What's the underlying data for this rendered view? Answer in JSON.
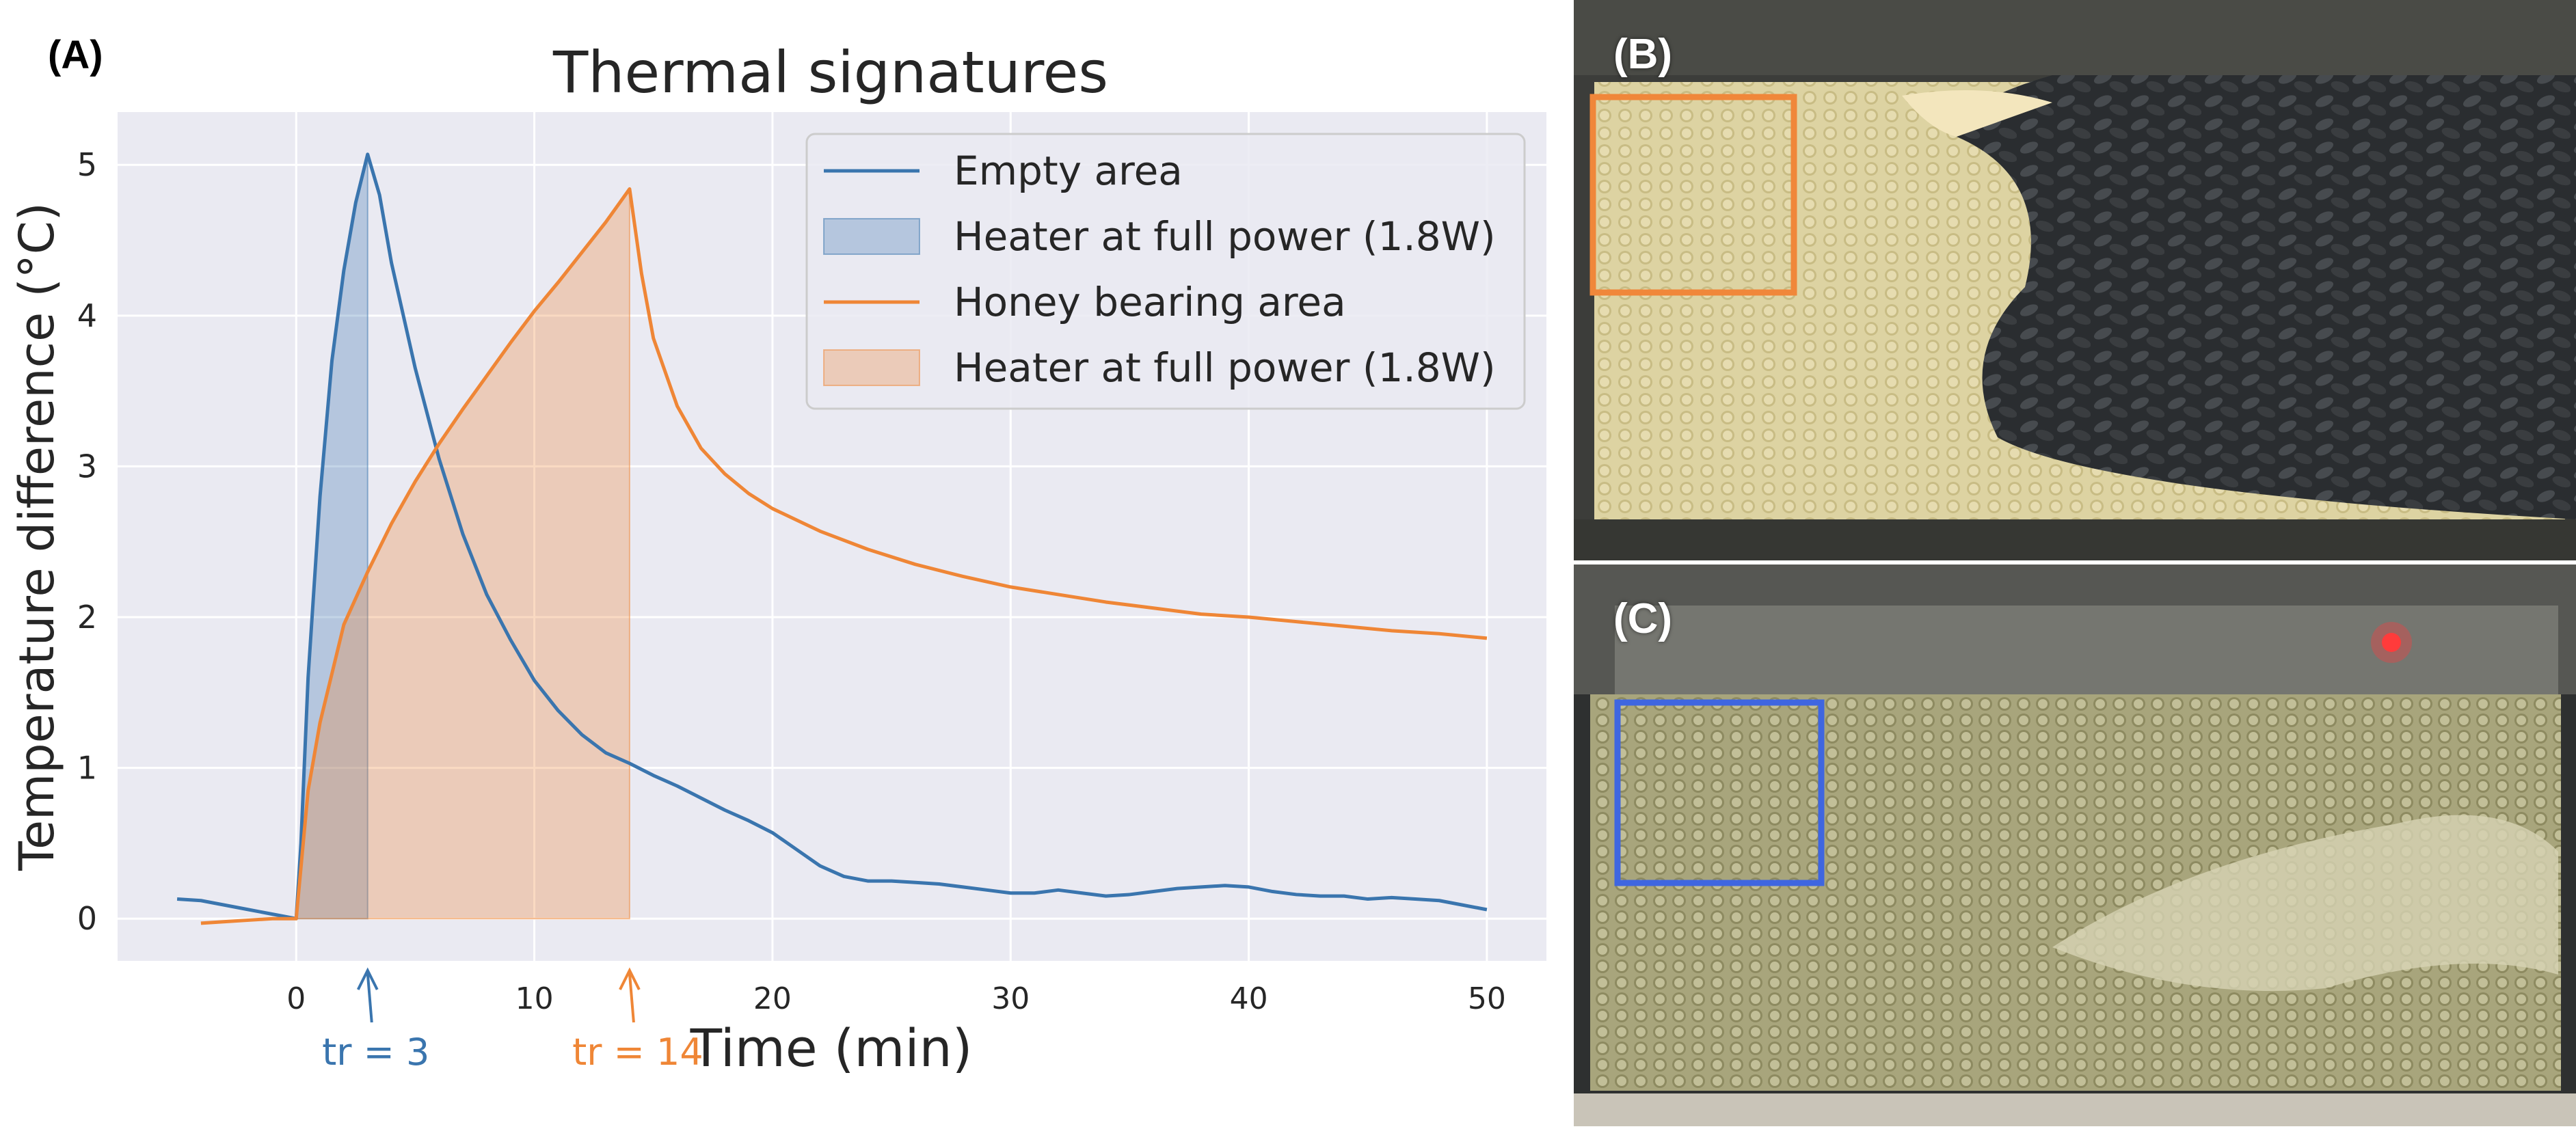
{
  "panel_a_label": "(A)",
  "chart_data": {
    "type": "line",
    "title": "Thermal signatures",
    "xlabel": "Time (min)",
    "ylabel": "Temperature difference (°C)",
    "xlim": [
      -7.5,
      52.5
    ],
    "ylim": [
      -0.28,
      5.35
    ],
    "xticks": [
      0,
      10,
      20,
      30,
      40,
      50
    ],
    "yticks": [
      0,
      1,
      2,
      3,
      4,
      5
    ],
    "grid": true,
    "legend_position": "top-right",
    "series": [
      {
        "name": "Empty area",
        "color": "#3a75ae",
        "x": [
          -5,
          -4,
          -3,
          -2,
          -1,
          0,
          0.2,
          0.5,
          1,
          1.5,
          2,
          2.5,
          3,
          3.5,
          4,
          5,
          6,
          7,
          8,
          9,
          10,
          11,
          12,
          13,
          14,
          15,
          16,
          17,
          18,
          19,
          20,
          21,
          22,
          23,
          24,
          25,
          26,
          27,
          28,
          29,
          30,
          31,
          32,
          33,
          34,
          35,
          36,
          37,
          38,
          39,
          40,
          41,
          42,
          43,
          44,
          45,
          46,
          47,
          48,
          49,
          50
        ],
        "values": [
          0.13,
          0.12,
          0.09,
          0.06,
          0.03,
          0.0,
          0.5,
          1.6,
          2.8,
          3.7,
          4.3,
          4.75,
          5.07,
          4.8,
          4.35,
          3.65,
          3.05,
          2.55,
          2.15,
          1.85,
          1.58,
          1.38,
          1.22,
          1.1,
          1.03,
          0.95,
          0.88,
          0.8,
          0.72,
          0.65,
          0.57,
          0.46,
          0.35,
          0.28,
          0.25,
          0.25,
          0.24,
          0.23,
          0.21,
          0.19,
          0.17,
          0.17,
          0.19,
          0.17,
          0.15,
          0.16,
          0.18,
          0.2,
          0.21,
          0.22,
          0.21,
          0.18,
          0.16,
          0.15,
          0.15,
          0.13,
          0.14,
          0.13,
          0.12,
          0.09,
          0.06
        ]
      },
      {
        "name": "Honey bearing area",
        "color": "#ef8636",
        "x": [
          -4,
          -3,
          -2,
          -1,
          0,
          0.5,
          1,
          2,
          3,
          4,
          5,
          6,
          7,
          8,
          9,
          10,
          11,
          12,
          13,
          14,
          14.5,
          15,
          16,
          17,
          18,
          19,
          20,
          22,
          24,
          26,
          28,
          30,
          32,
          34,
          36,
          38,
          40,
          42,
          44,
          46,
          48,
          50
        ],
        "values": [
          -0.03,
          -0.02,
          -0.01,
          0.0,
          0.0,
          0.85,
          1.3,
          1.95,
          2.3,
          2.62,
          2.9,
          3.15,
          3.38,
          3.6,
          3.82,
          4.03,
          4.22,
          4.42,
          4.62,
          4.84,
          4.28,
          3.85,
          3.4,
          3.12,
          2.95,
          2.82,
          2.72,
          2.57,
          2.45,
          2.35,
          2.27,
          2.2,
          2.15,
          2.1,
          2.06,
          2.02,
          2.0,
          1.97,
          1.94,
          1.91,
          1.89,
          1.86
        ]
      }
    ],
    "shaded_regions": [
      {
        "name": "Heater at full power (1.8W)",
        "color": "#3a75ae",
        "series": "Empty area",
        "x_start": 0,
        "x_end": 3
      },
      {
        "name": "Heater at full power (1.8W)",
        "color": "#ef8636",
        "series": "Honey bearing area",
        "x_start": 0,
        "x_end": 14
      }
    ],
    "annotations": [
      {
        "text": "tr = 3",
        "x": 3,
        "color": "#3a75ae"
      },
      {
        "text": "tr = 14",
        "x": 14,
        "color": "#ef8636"
      }
    ]
  },
  "photos": {
    "b": {
      "label": "(B)",
      "box_color": "#f0873a"
    },
    "c": {
      "label": "(C)",
      "box_color": "#3f66e0"
    }
  }
}
